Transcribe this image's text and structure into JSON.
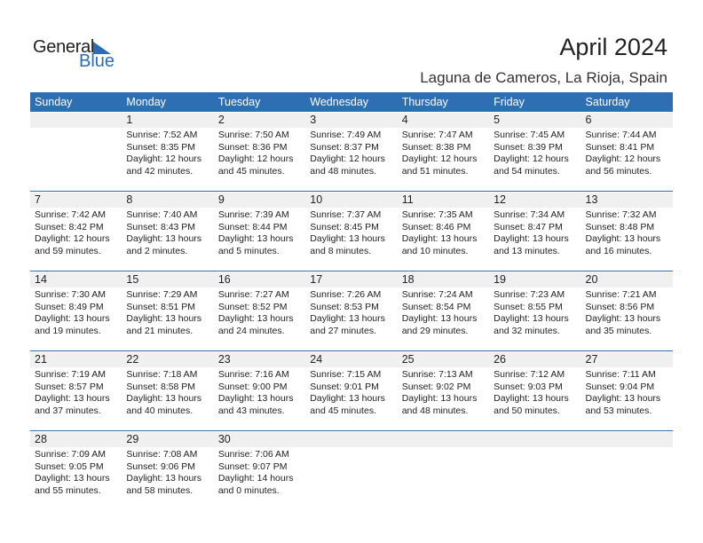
{
  "logo": {
    "word1": "General",
    "word2": "Blue",
    "accent": "#2a6db5"
  },
  "title": "April 2024",
  "location": "Laguna de Cameros, La Rioja, Spain",
  "header_color": "#2e6fb4",
  "weekdays": [
    "Sunday",
    "Monday",
    "Tuesday",
    "Wednesday",
    "Thursday",
    "Friday",
    "Saturday"
  ],
  "weeks": [
    [
      null,
      {
        "day": "1",
        "sunrise": "Sunrise: 7:52 AM",
        "sunset": "Sunset: 8:35 PM",
        "daylight": "Daylight: 12 hours",
        "minutes": "and 42 minutes."
      },
      {
        "day": "2",
        "sunrise": "Sunrise: 7:50 AM",
        "sunset": "Sunset: 8:36 PM",
        "daylight": "Daylight: 12 hours",
        "minutes": "and 45 minutes."
      },
      {
        "day": "3",
        "sunrise": "Sunrise: 7:49 AM",
        "sunset": "Sunset: 8:37 PM",
        "daylight": "Daylight: 12 hours",
        "minutes": "and 48 minutes."
      },
      {
        "day": "4",
        "sunrise": "Sunrise: 7:47 AM",
        "sunset": "Sunset: 8:38 PM",
        "daylight": "Daylight: 12 hours",
        "minutes": "and 51 minutes."
      },
      {
        "day": "5",
        "sunrise": "Sunrise: 7:45 AM",
        "sunset": "Sunset: 8:39 PM",
        "daylight": "Daylight: 12 hours",
        "minutes": "and 54 minutes."
      },
      {
        "day": "6",
        "sunrise": "Sunrise: 7:44 AM",
        "sunset": "Sunset: 8:41 PM",
        "daylight": "Daylight: 12 hours",
        "minutes": "and 56 minutes."
      }
    ],
    [
      {
        "day": "7",
        "sunrise": "Sunrise: 7:42 AM",
        "sunset": "Sunset: 8:42 PM",
        "daylight": "Daylight: 12 hours",
        "minutes": "and 59 minutes."
      },
      {
        "day": "8",
        "sunrise": "Sunrise: 7:40 AM",
        "sunset": "Sunset: 8:43 PM",
        "daylight": "Daylight: 13 hours",
        "minutes": "and 2 minutes."
      },
      {
        "day": "9",
        "sunrise": "Sunrise: 7:39 AM",
        "sunset": "Sunset: 8:44 PM",
        "daylight": "Daylight: 13 hours",
        "minutes": "and 5 minutes."
      },
      {
        "day": "10",
        "sunrise": "Sunrise: 7:37 AM",
        "sunset": "Sunset: 8:45 PM",
        "daylight": "Daylight: 13 hours",
        "minutes": "and 8 minutes."
      },
      {
        "day": "11",
        "sunrise": "Sunrise: 7:35 AM",
        "sunset": "Sunset: 8:46 PM",
        "daylight": "Daylight: 13 hours",
        "minutes": "and 10 minutes."
      },
      {
        "day": "12",
        "sunrise": "Sunrise: 7:34 AM",
        "sunset": "Sunset: 8:47 PM",
        "daylight": "Daylight: 13 hours",
        "minutes": "and 13 minutes."
      },
      {
        "day": "13",
        "sunrise": "Sunrise: 7:32 AM",
        "sunset": "Sunset: 8:48 PM",
        "daylight": "Daylight: 13 hours",
        "minutes": "and 16 minutes."
      }
    ],
    [
      {
        "day": "14",
        "sunrise": "Sunrise: 7:30 AM",
        "sunset": "Sunset: 8:49 PM",
        "daylight": "Daylight: 13 hours",
        "minutes": "and 19 minutes."
      },
      {
        "day": "15",
        "sunrise": "Sunrise: 7:29 AM",
        "sunset": "Sunset: 8:51 PM",
        "daylight": "Daylight: 13 hours",
        "minutes": "and 21 minutes."
      },
      {
        "day": "16",
        "sunrise": "Sunrise: 7:27 AM",
        "sunset": "Sunset: 8:52 PM",
        "daylight": "Daylight: 13 hours",
        "minutes": "and 24 minutes."
      },
      {
        "day": "17",
        "sunrise": "Sunrise: 7:26 AM",
        "sunset": "Sunset: 8:53 PM",
        "daylight": "Daylight: 13 hours",
        "minutes": "and 27 minutes."
      },
      {
        "day": "18",
        "sunrise": "Sunrise: 7:24 AM",
        "sunset": "Sunset: 8:54 PM",
        "daylight": "Daylight: 13 hours",
        "minutes": "and 29 minutes."
      },
      {
        "day": "19",
        "sunrise": "Sunrise: 7:23 AM",
        "sunset": "Sunset: 8:55 PM",
        "daylight": "Daylight: 13 hours",
        "minutes": "and 32 minutes."
      },
      {
        "day": "20",
        "sunrise": "Sunrise: 7:21 AM",
        "sunset": "Sunset: 8:56 PM",
        "daylight": "Daylight: 13 hours",
        "minutes": "and 35 minutes."
      }
    ],
    [
      {
        "day": "21",
        "sunrise": "Sunrise: 7:19 AM",
        "sunset": "Sunset: 8:57 PM",
        "daylight": "Daylight: 13 hours",
        "minutes": "and 37 minutes."
      },
      {
        "day": "22",
        "sunrise": "Sunrise: 7:18 AM",
        "sunset": "Sunset: 8:58 PM",
        "daylight": "Daylight: 13 hours",
        "minutes": "and 40 minutes."
      },
      {
        "day": "23",
        "sunrise": "Sunrise: 7:16 AM",
        "sunset": "Sunset: 9:00 PM",
        "daylight": "Daylight: 13 hours",
        "minutes": "and 43 minutes."
      },
      {
        "day": "24",
        "sunrise": "Sunrise: 7:15 AM",
        "sunset": "Sunset: 9:01 PM",
        "daylight": "Daylight: 13 hours",
        "minutes": "and 45 minutes."
      },
      {
        "day": "25",
        "sunrise": "Sunrise: 7:13 AM",
        "sunset": "Sunset: 9:02 PM",
        "daylight": "Daylight: 13 hours",
        "minutes": "and 48 minutes."
      },
      {
        "day": "26",
        "sunrise": "Sunrise: 7:12 AM",
        "sunset": "Sunset: 9:03 PM",
        "daylight": "Daylight: 13 hours",
        "minutes": "and 50 minutes."
      },
      {
        "day": "27",
        "sunrise": "Sunrise: 7:11 AM",
        "sunset": "Sunset: 9:04 PM",
        "daylight": "Daylight: 13 hours",
        "minutes": "and 53 minutes."
      }
    ],
    [
      {
        "day": "28",
        "sunrise": "Sunrise: 7:09 AM",
        "sunset": "Sunset: 9:05 PM",
        "daylight": "Daylight: 13 hours",
        "minutes": "and 55 minutes."
      },
      {
        "day": "29",
        "sunrise": "Sunrise: 7:08 AM",
        "sunset": "Sunset: 9:06 PM",
        "daylight": "Daylight: 13 hours",
        "minutes": "and 58 minutes."
      },
      {
        "day": "30",
        "sunrise": "Sunrise: 7:06 AM",
        "sunset": "Sunset: 9:07 PM",
        "daylight": "Daylight: 14 hours",
        "minutes": "and 0 minutes."
      },
      null,
      null,
      null,
      null
    ]
  ]
}
